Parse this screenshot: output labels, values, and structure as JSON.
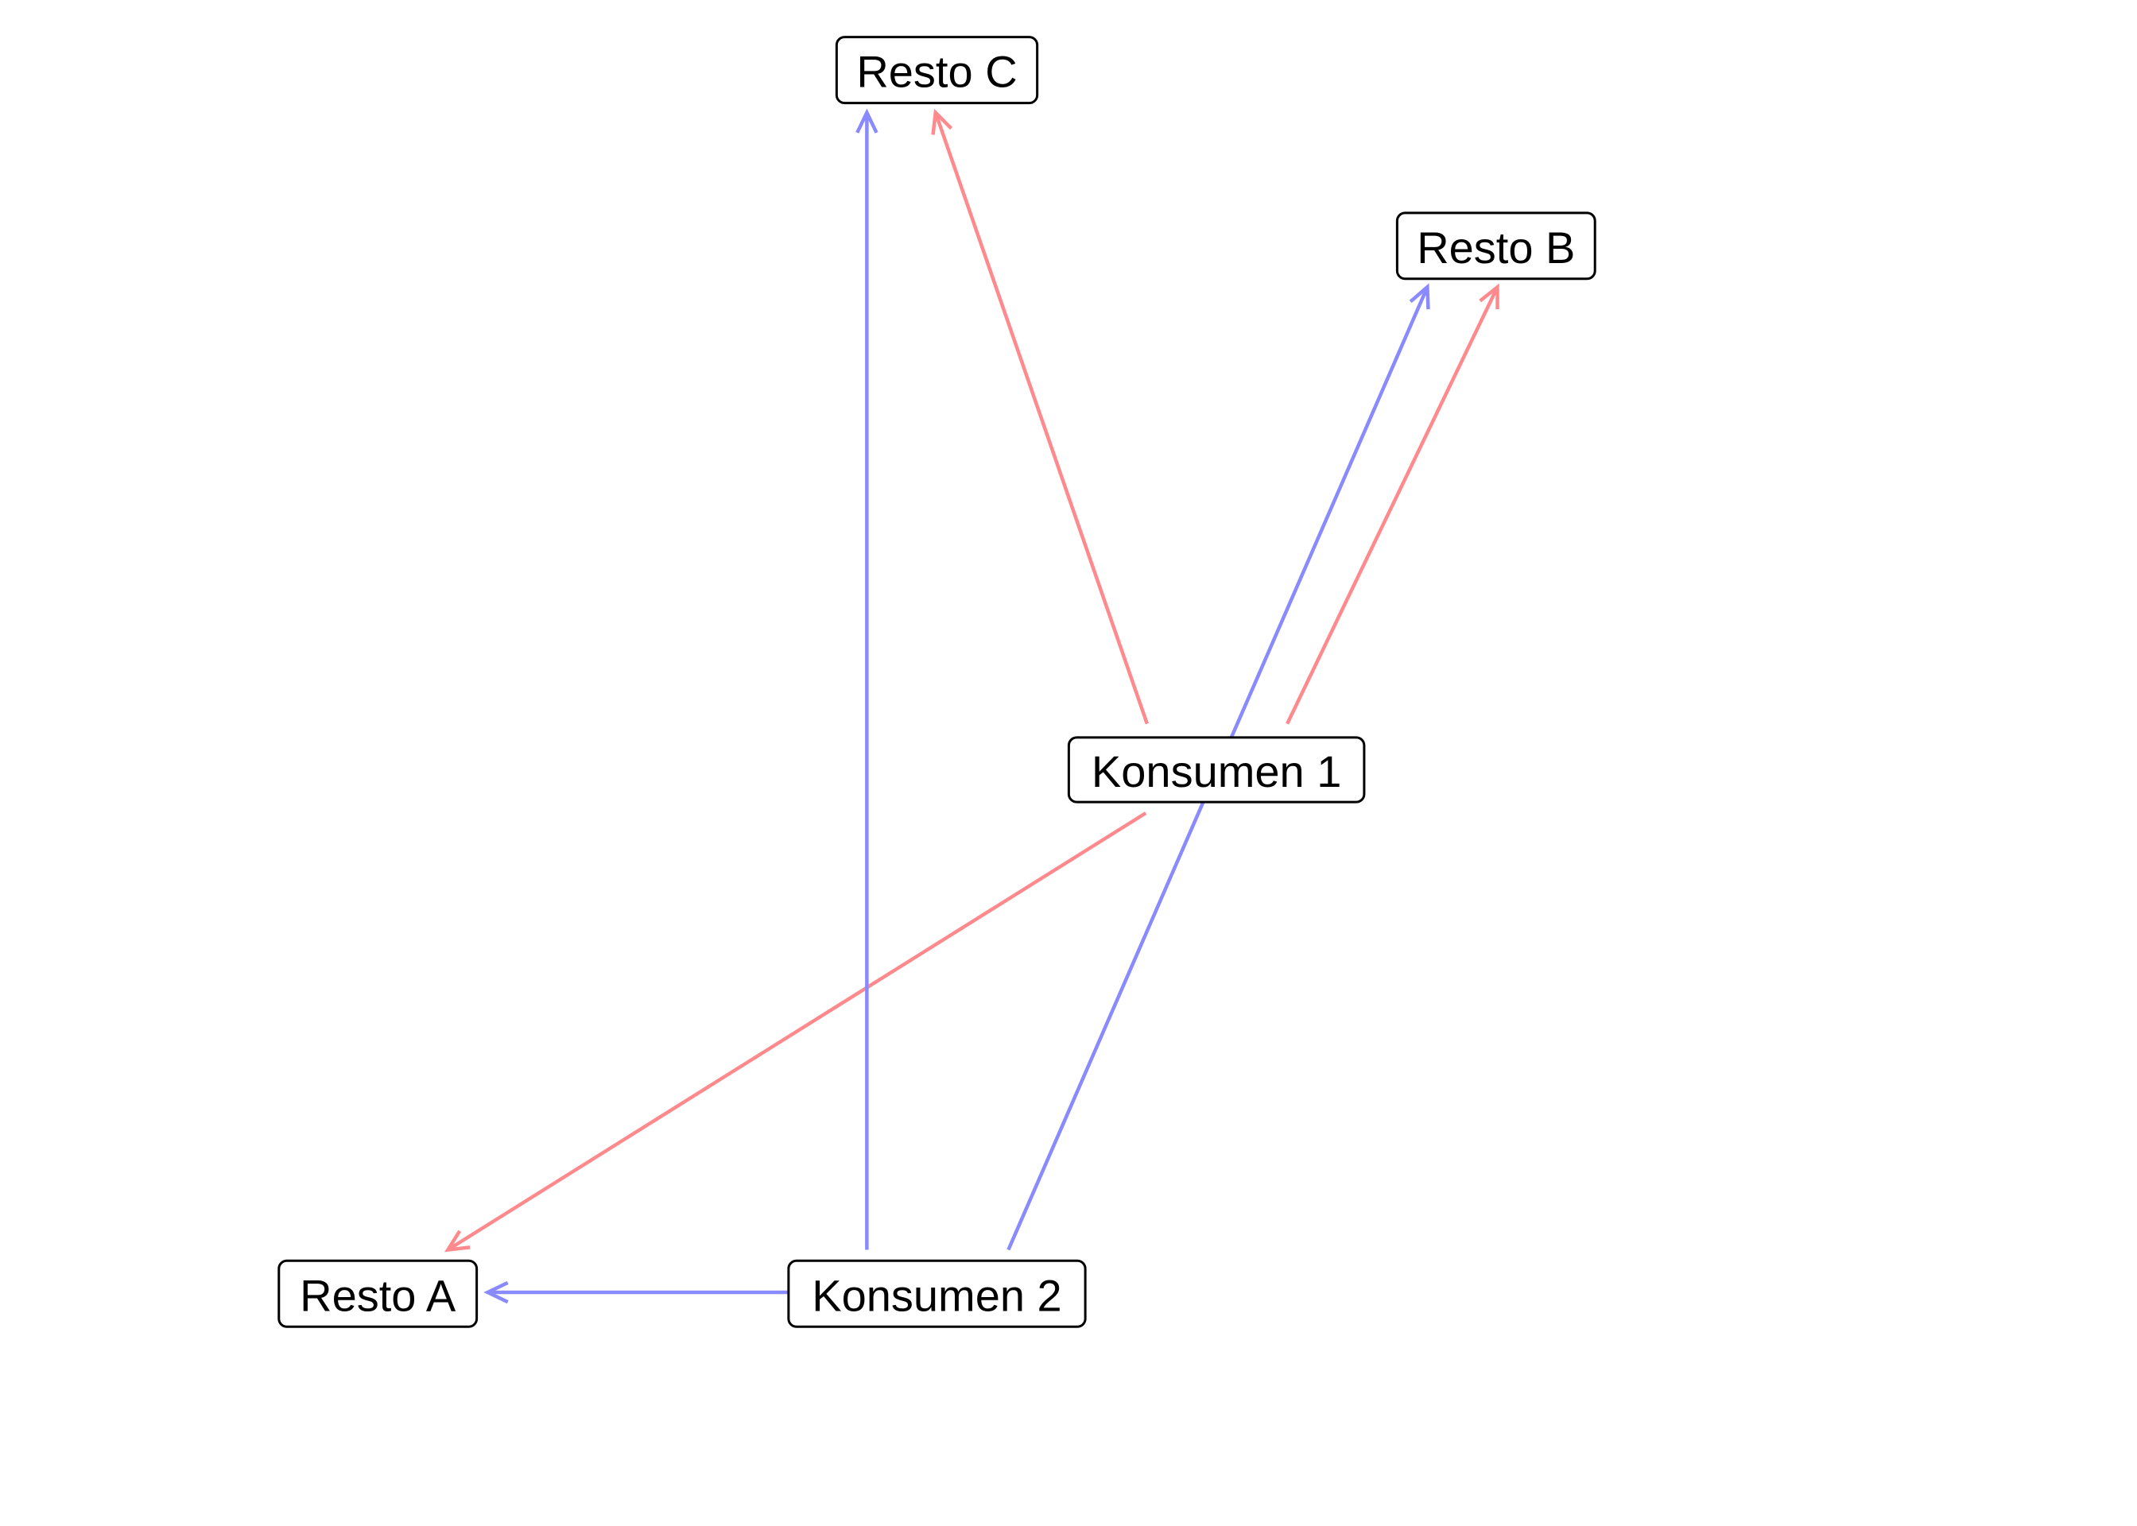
{
  "colors": {
    "konsumen_1_edges": "#ff8a8e",
    "konsumen_2_edges": "#8a8aff",
    "node_border": "#000000",
    "node_fill": "#ffffff",
    "text": "#000000"
  },
  "nodes": [
    {
      "id": "resto_c",
      "label": "Resto C"
    },
    {
      "id": "resto_b",
      "label": "Resto B"
    },
    {
      "id": "konsumen_1",
      "label": "Konsumen 1"
    },
    {
      "id": "resto_a",
      "label": "Resto A"
    },
    {
      "id": "konsumen_2",
      "label": "Konsumen 2"
    }
  ],
  "edges": [
    {
      "from": "konsumen_1",
      "to": "resto_c",
      "color_key": "konsumen_1_edges"
    },
    {
      "from": "konsumen_1",
      "to": "resto_b",
      "color_key": "konsumen_1_edges"
    },
    {
      "from": "konsumen_1",
      "to": "resto_a",
      "color_key": "konsumen_1_edges"
    },
    {
      "from": "konsumen_2",
      "to": "resto_c",
      "color_key": "konsumen_2_edges"
    },
    {
      "from": "konsumen_2",
      "to": "resto_b",
      "color_key": "konsumen_2_edges"
    },
    {
      "from": "konsumen_2",
      "to": "resto_a",
      "color_key": "konsumen_2_edges"
    }
  ]
}
